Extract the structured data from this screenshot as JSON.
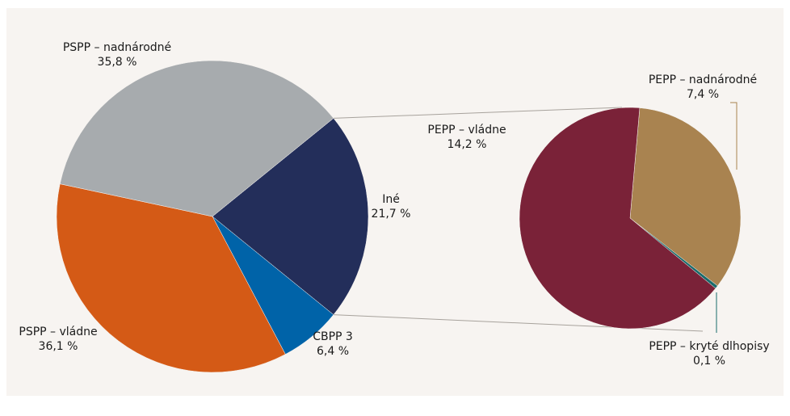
{
  "chart_data": [
    {
      "type": "pie",
      "categories": [
        "Iné",
        "CBPP 3",
        "PSPP – vládne",
        "PSPP – nadnárodné"
      ],
      "values": [
        21.7,
        6.4,
        36.1,
        35.8
      ],
      "value_labels": [
        "21,7 %",
        "6,4 %",
        "36,1 %",
        "35,8 %"
      ],
      "colors": [
        "#232e5a",
        "#0063a8",
        "#d45a16",
        "#a7abae"
      ]
    },
    {
      "type": "pie",
      "categories": [
        "PEPP – nadnárodné",
        "PEPP – kryté dlhopisy",
        "PEPP – vládne"
      ],
      "values": [
        7.4,
        0.1,
        14.2
      ],
      "value_labels": [
        "7,4 %",
        "0,1 %",
        "14,2 %"
      ],
      "colors": [
        "#a98350",
        "#1a6b6b",
        "#7a2238"
      ]
    }
  ]
}
